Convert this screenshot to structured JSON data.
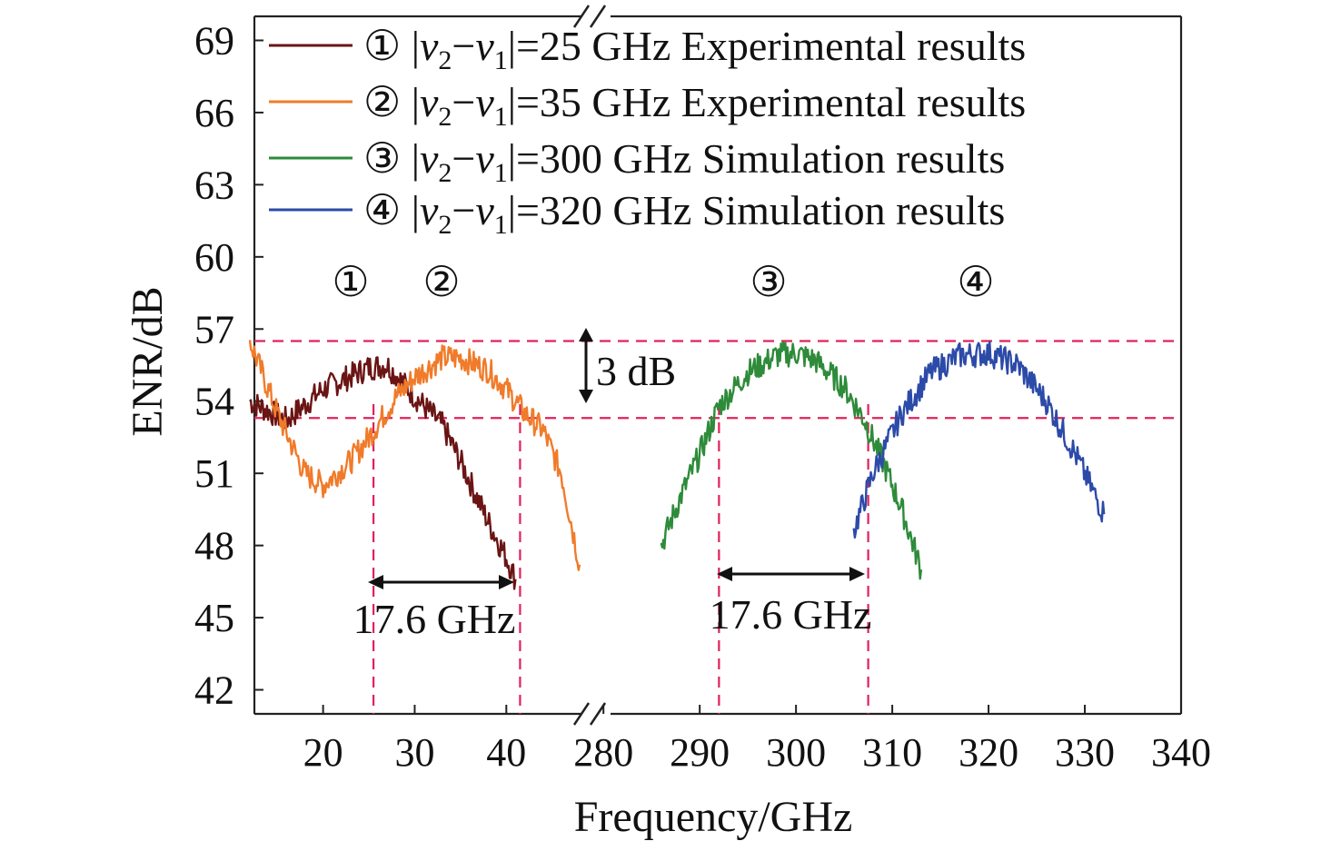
{
  "chart_data": {
    "type": "line",
    "xlabel": "Frequency/GHz",
    "ylabel": "ENR/dB",
    "ylim": [
      41,
      70
    ],
    "yticks": [
      42,
      45,
      48,
      51,
      54,
      57,
      60,
      63,
      66,
      69
    ],
    "xaxis_break": true,
    "xticks_left": [
      20,
      30,
      40
    ],
    "xticks_right": [
      280,
      290,
      300,
      310,
      320,
      330,
      340
    ],
    "xlim_left": [
      12.5,
      48.5
    ],
    "xlim_right": [
      278,
      340
    ],
    "legend_position": "top",
    "series": [
      {
        "marker": "①",
        "delta": "25",
        "tail": " GHz Experimental results",
        "color": "#6b1414",
        "x": [
          12,
          16,
          20,
          25,
          27,
          30,
          33,
          35,
          38,
          40,
          41
        ],
        "y": [
          54.0,
          53.2,
          54.5,
          55.4,
          55.5,
          54.2,
          53.0,
          51.5,
          49.0,
          47.5,
          46.6
        ]
      },
      {
        "marker": "②",
        "delta": "35",
        "tail": " GHz Experimental results",
        "color": "#f07b2a",
        "x": [
          12,
          15,
          18,
          20,
          23,
          25,
          28,
          30,
          33,
          35,
          38,
          40,
          42,
          44,
          46,
          48
        ],
        "y": [
          56.5,
          53.5,
          51.0,
          50.5,
          51.5,
          52.5,
          54.2,
          55.0,
          55.8,
          55.8,
          55.3,
          54.5,
          53.5,
          52.8,
          51.0,
          47.2
        ]
      },
      {
        "marker": "③",
        "delta": "300",
        "tail": " GHz Simulation results",
        "color": "#2e8b3a",
        "x": [
          286,
          288,
          290,
          292,
          295,
          298,
          300,
          302,
          305,
          307,
          309,
          311,
          313
        ],
        "y": [
          48.0,
          50.0,
          51.8,
          53.8,
          55.2,
          55.9,
          56.0,
          55.7,
          54.6,
          53.3,
          51.5,
          49.5,
          47.0
        ]
      },
      {
        "marker": "④",
        "delta": "320",
        "tail": " GHz Simulation results",
        "color": "#2c4aa8",
        "x": [
          306,
          308,
          311,
          314,
          317,
          320,
          323,
          326,
          329,
          332
        ],
        "y": [
          48.6,
          51.0,
          53.5,
          55.2,
          55.9,
          56.0,
          55.5,
          54.0,
          51.8,
          49.3
        ]
      }
    ],
    "reference_lines_y": [
      56.5,
      53.3
    ],
    "vertical_markers_x": [
      25.5,
      41.5,
      292,
      307.5
    ],
    "annotations": {
      "dB_label": "3 dB",
      "bw_left": "17.6 GHz",
      "bw_right": "17.6 GHz",
      "curve_labels": [
        "①",
        "②",
        "③",
        "④"
      ]
    },
    "legend_common": {
      "abs_open": "|",
      "v": "v",
      "sub2": "2",
      "minus": "−",
      "sub1": "1",
      "abs_close": "|="
    }
  }
}
